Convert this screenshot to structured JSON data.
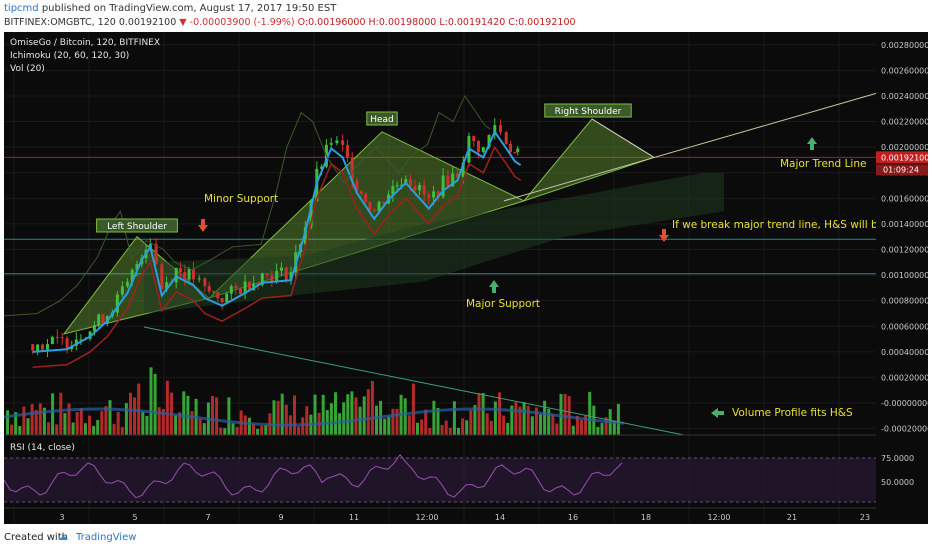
{
  "header": {
    "username": "tipcmd",
    "published": "published on TradingView.com, August 17, 2017 19:50 EST",
    "symbol": "BITFINEX:OMGBTC, 120",
    "price": "0.00192100",
    "arrow": "▼",
    "change": "-0.00003900 (-1.99%)",
    "open": "O:0.00196000",
    "high": "H:0.00198000",
    "low": "L:0.00191420",
    "close": "C:0.00192100"
  },
  "legend": {
    "title": "OmiseGo / Bitcoin, 120, BITFINEX",
    "ichimoku": "Ichimoku (20, 60, 120, 30)",
    "vol": "Vol (20)",
    "rsi": "RSI (14, close)"
  },
  "annotations": {
    "head": "Head",
    "left_shoulder": "Left Shoulder",
    "right_shoulder": "Right Shoulder",
    "minor_support": "Minor Support",
    "major_support": "Major Support",
    "major_trend_line": "Major Trend Line",
    "break_note": "If we break major trend line, H&S will be real",
    "volume_note": "Volume Profile fits H&S"
  },
  "price_tags": {
    "last": "0.00192100",
    "timer": "01:09:24"
  },
  "footer": {
    "created": "Created with",
    "brand": "TradingView"
  },
  "colors": {
    "background": "#0b0b0b",
    "annotation_text": "#e8e030",
    "pattern_fill": "#7fbf3f",
    "up_candle": "#3fbf3f",
    "down_candle": "#d03030",
    "tenkan": "#2a9fe0",
    "kijun": "#a02020",
    "trend_line": "#c8c8a0",
    "rsi_line": "#9a4fb0",
    "rsi_band": "#2a1a35",
    "arrow_up": "#4caf70",
    "arrow_down": "#e05030"
  },
  "chart_data": {
    "type": "line",
    "title": "OmiseGo / Bitcoin, 120, BITFINEX",
    "price_axis_ticks": [
      "0.00280000",
      "0.00260000",
      "0.00240000",
      "0.00220000",
      "0.00200000",
      "0.00192100",
      "0.00180000",
      "0.00160000",
      "0.00140000",
      "0.00120000",
      "0.00100000",
      "0.00080000",
      "0.00060000",
      "0.00040000",
      "0.00020000",
      "-0.00000000",
      "-0.00020000"
    ],
    "time_axis_ticks": [
      "3",
      "5",
      "7",
      "9",
      "11",
      "12:00",
      "14",
      "16",
      "18",
      "12:00",
      "21",
      "23"
    ],
    "rsi_axis_ticks": [
      "75.0000",
      "50.0000"
    ],
    "close_price_series": [
      {
        "x": 1.0,
        "y": 0.00046
      },
      {
        "x": 2.2,
        "y": 0.00048
      },
      {
        "x": 3.0,
        "y": 0.00058
      },
      {
        "x": 3.6,
        "y": 0.0007
      },
      {
        "x": 4.3,
        "y": 0.00092
      },
      {
        "x": 4.8,
        "y": 0.00118
      },
      {
        "x": 5.1,
        "y": 0.00128
      },
      {
        "x": 5.5,
        "y": 0.0009
      },
      {
        "x": 6.0,
        "y": 0.00105
      },
      {
        "x": 6.6,
        "y": 0.00098
      },
      {
        "x": 7.0,
        "y": 0.00088
      },
      {
        "x": 7.6,
        "y": 0.00082
      },
      {
        "x": 8.4,
        "y": 0.00092
      },
      {
        "x": 9.0,
        "y": 0.001
      },
      {
        "x": 10.0,
        "y": 0.00102
      },
      {
        "x": 10.5,
        "y": 0.0014
      },
      {
        "x": 10.9,
        "y": 0.00178
      },
      {
        "x": 11.4,
        "y": 0.00205
      },
      {
        "x": 11.8,
        "y": 0.00198
      },
      {
        "x": 12.3,
        "y": 0.0017
      },
      {
        "x": 12.9,
        "y": 0.0015
      },
      {
        "x": 13.4,
        "y": 0.00165
      },
      {
        "x": 14.0,
        "y": 0.00178
      },
      {
        "x": 14.8,
        "y": 0.00158
      },
      {
        "x": 15.3,
        "y": 0.00172
      },
      {
        "x": 15.8,
        "y": 0.0018
      },
      {
        "x": 16.2,
        "y": 0.00205
      },
      {
        "x": 16.7,
        "y": 0.00198
      },
      {
        "x": 17.1,
        "y": 0.00218
      },
      {
        "x": 17.5,
        "y": 0.00205
      },
      {
        "x": 17.8,
        "y": 0.00195
      },
      {
        "x": 18.0,
        "y": 0.00192
      }
    ],
    "xlim": [
      0,
      26.5
    ],
    "ylim": [
      -0.00025,
      0.0029
    ],
    "grid": true
  }
}
